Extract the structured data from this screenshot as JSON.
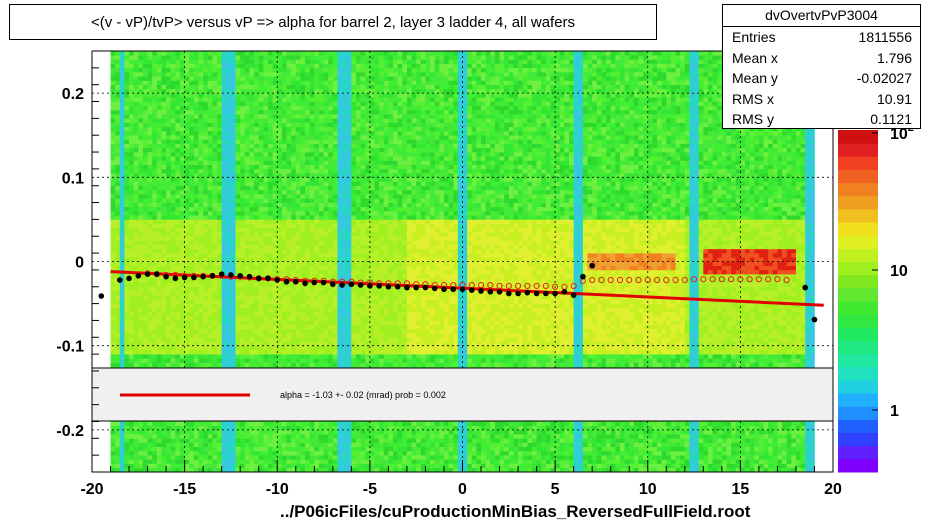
{
  "title": "<(v - vP)/tvP> versus   vP => alpha for barrel 2, layer 3 ladder 4, all wafers",
  "stats": {
    "name": "dvOvertvPvP3004",
    "rows": [
      {
        "label": "Entries",
        "value": "1811556"
      },
      {
        "label": "Mean x",
        "value": "1.796"
      },
      {
        "label": "Mean y",
        "value": "-0.02027"
      },
      {
        "label": "RMS x",
        "value": "10.91"
      },
      {
        "label": "RMS y",
        "value": "0.1121"
      }
    ]
  },
  "footer": "../P06icFiles/cuProductionMinBias_ReversedFullField.root",
  "chart_data": {
    "type": "heatmap",
    "xlim": [
      -20,
      20
    ],
    "ylim": [
      -0.25,
      0.25
    ],
    "x_ticks": [
      "-20",
      "-15",
      "-10",
      "-5",
      "0",
      "5",
      "10",
      "15",
      "20"
    ],
    "y_ticks": [
      "-0.2",
      "-0.1",
      "0",
      "0.1",
      "0.2"
    ],
    "colorbar": {
      "scale": "log",
      "ticks": [
        "1",
        "10",
        "10^2"
      ]
    },
    "fit_legend": "alpha =   -1.03 +-  0.02 (mrad) prob = 0.002",
    "fit_line": {
      "x": [
        -19,
        19.5
      ],
      "y": [
        -0.012,
        -0.052
      ],
      "color": "#e00000"
    },
    "profile_black": {
      "x": [
        -19.5,
        -18.5,
        -18,
        -17.5,
        -17,
        -16.5,
        -16,
        -15.5,
        -15,
        -14.5,
        -14,
        -13.5,
        -13,
        -12.5,
        -12,
        -11.5,
        -11,
        -10.5,
        -10,
        -9.5,
        -9,
        -8.5,
        -8,
        -7.5,
        -7,
        -6.5,
        -6,
        -5.5,
        -5,
        -4.5,
        -4,
        -3.5,
        -3,
        -2.5,
        -2,
        -1.5,
        -1,
        -0.5,
        0,
        0.5,
        1,
        1.5,
        2,
        2.5,
        3,
        3.5,
        4,
        4.5,
        5,
        5.5,
        6,
        6.5,
        7,
        18.5,
        19
      ],
      "y": [
        -0.041,
        -0.022,
        -0.02,
        -0.017,
        -0.015,
        -0.015,
        -0.018,
        -0.02,
        -0.019,
        -0.019,
        -0.018,
        -0.017,
        -0.015,
        -0.016,
        -0.017,
        -0.018,
        -0.02,
        -0.02,
        -0.022,
        -0.024,
        -0.024,
        -0.026,
        -0.025,
        -0.025,
        -0.027,
        -0.028,
        -0.027,
        -0.028,
        -0.029,
        -0.029,
        -0.03,
        -0.03,
        -0.031,
        -0.031,
        -0.031,
        -0.032,
        -0.033,
        -0.033,
        -0.033,
        -0.034,
        -0.035,
        -0.036,
        -0.036,
        -0.038,
        -0.038,
        -0.037,
        -0.038,
        -0.038,
        -0.038,
        -0.036,
        -0.04,
        -0.018,
        -0.005,
        -0.031,
        -0.069
      ]
    },
    "profile_red": {
      "x": [
        -17,
        -16.5,
        -16,
        -15.5,
        -15,
        -14.5,
        -14,
        -13.5,
        -13,
        -12.5,
        -12,
        -11.5,
        -11,
        -10.5,
        -10,
        -9.5,
        -9,
        -8.5,
        -8,
        -7.5,
        -7,
        -6.5,
        -6,
        -5.5,
        -5,
        -4.5,
        -4,
        -3.5,
        -3,
        -2.5,
        -2,
        -1.5,
        -1,
        -0.5,
        0,
        0.5,
        1,
        1.5,
        2,
        2.5,
        3,
        3.5,
        4,
        4.5,
        5,
        5.5,
        6,
        6.5,
        7,
        7.5,
        8,
        8.5,
        9,
        9.5,
        10,
        10.5,
        11,
        11.5,
        12,
        12.5,
        13,
        13.5,
        14,
        14.5,
        15,
        15.5,
        16,
        16.5,
        17,
        17.5
      ],
      "y": [
        -0.014,
        -0.015,
        -0.016,
        -0.016,
        -0.017,
        -0.017,
        -0.017,
        -0.017,
        -0.017,
        -0.018,
        -0.018,
        -0.019,
        -0.02,
        -0.02,
        -0.021,
        -0.021,
        -0.022,
        -0.023,
        -0.023,
        -0.023,
        -0.024,
        -0.024,
        -0.024,
        -0.025,
        -0.025,
        -0.026,
        -0.026,
        -0.026,
        -0.026,
        -0.027,
        -0.027,
        -0.028,
        -0.028,
        -0.028,
        -0.028,
        -0.028,
        -0.028,
        -0.028,
        -0.029,
        -0.029,
        -0.029,
        -0.029,
        -0.029,
        -0.029,
        -0.03,
        -0.03,
        -0.029,
        -0.023,
        -0.022,
        -0.022,
        -0.022,
        -0.022,
        -0.022,
        -0.022,
        -0.022,
        -0.022,
        -0.022,
        -0.022,
        -0.022,
        -0.021,
        -0.021,
        -0.021,
        -0.021,
        -0.021,
        -0.021,
        -0.021,
        -0.021,
        -0.021,
        -0.021,
        -0.022
      ]
    }
  }
}
